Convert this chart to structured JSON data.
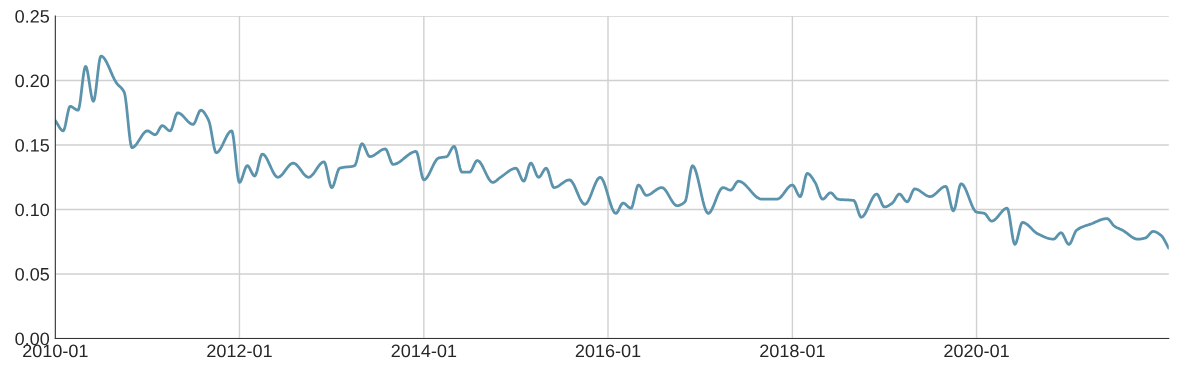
{
  "chart_data": {
    "type": "line",
    "x": [
      "2010-01",
      "2010-02",
      "2010-03",
      "2010-04",
      "2010-05",
      "2010-06",
      "2010-07",
      "2010-09",
      "2010-10",
      "2010-11",
      "2011-01",
      "2011-02",
      "2011-03",
      "2011-04",
      "2011-05",
      "2011-07",
      "2011-08",
      "2011-09",
      "2011-10",
      "2011-12",
      "2012-01",
      "2012-02",
      "2012-03",
      "2012-04",
      "2012-06",
      "2012-08",
      "2012-10",
      "2012-12",
      "2013-01",
      "2013-02",
      "2013-04",
      "2013-05",
      "2013-06",
      "2013-08",
      "2013-09",
      "2013-12",
      "2014-01",
      "2014-03",
      "2014-04",
      "2014-05",
      "2014-06",
      "2014-07",
      "2014-08",
      "2014-10",
      "2014-11",
      "2015-01",
      "2015-02",
      "2015-03",
      "2015-04",
      "2015-05",
      "2015-06",
      "2015-08",
      "2015-10",
      "2015-12",
      "2016-02",
      "2016-03",
      "2016-04",
      "2016-05",
      "2016-06",
      "2016-08",
      "2016-10",
      "2016-11",
      "2016-12",
      "2017-02",
      "2017-04",
      "2017-05",
      "2017-06",
      "2017-09",
      "2017-11",
      "2018-01",
      "2018-02",
      "2018-03",
      "2018-04",
      "2018-05",
      "2018-06",
      "2018-07",
      "2018-09",
      "2018-10",
      "2018-12",
      "2019-01",
      "2019-02",
      "2019-03",
      "2019-04",
      "2019-05",
      "2019-07",
      "2019-09",
      "2019-10",
      "2019-11",
      "2020-01",
      "2020-02",
      "2020-03",
      "2020-05",
      "2020-06",
      "2020-07",
      "2020-09",
      "2020-11",
      "2020-12",
      "2021-01",
      "2021-02",
      "2021-04",
      "2021-06",
      "2021-07",
      "2021-08",
      "2021-10",
      "2021-11",
      "2021-12",
      "2022-01",
      "2022-02"
    ],
    "series": [
      {
        "color": "#5b93ad",
        "values": [
          0.169,
          0.161,
          0.18,
          0.177,
          0.211,
          0.184,
          0.219,
          0.198,
          0.191,
          0.148,
          0.161,
          0.158,
          0.165,
          0.161,
          0.175,
          0.166,
          0.177,
          0.169,
          0.144,
          0.161,
          0.121,
          0.134,
          0.126,
          0.143,
          0.125,
          0.136,
          0.125,
          0.137,
          0.117,
          0.132,
          0.134,
          0.151,
          0.141,
          0.147,
          0.135,
          0.145,
          0.123,
          0.14,
          0.141,
          0.149,
          0.129,
          0.129,
          0.138,
          0.121,
          0.125,
          0.132,
          0.122,
          0.136,
          0.125,
          0.132,
          0.117,
          0.123,
          0.104,
          0.125,
          0.097,
          0.105,
          0.101,
          0.119,
          0.111,
          0.117,
          0.103,
          0.106,
          0.134,
          0.097,
          0.117,
          0.115,
          0.122,
          0.108,
          0.108,
          0.119,
          0.11,
          0.128,
          0.121,
          0.108,
          0.113,
          0.108,
          0.107,
          0.094,
          0.112,
          0.102,
          0.105,
          0.112,
          0.106,
          0.116,
          0.11,
          0.118,
          0.099,
          0.12,
          0.098,
          0.097,
          0.091,
          0.101,
          0.073,
          0.09,
          0.081,
          0.077,
          0.082,
          0.073,
          0.084,
          0.089,
          0.093,
          0.087,
          0.084,
          0.077,
          0.078,
          0.083,
          0.08,
          0.07
        ]
      }
    ],
    "xlim": [
      "2010-01",
      "2022-02"
    ],
    "xticks": [
      "2010-01",
      "2012-01",
      "2014-01",
      "2016-01",
      "2018-01",
      "2020-01"
    ],
    "ylim": [
      0,
      0.25
    ],
    "yticks": [
      {
        "value": 0,
        "label": "0.00"
      },
      {
        "value": 0.05,
        "label": "0.05"
      },
      {
        "value": 0.1,
        "label": "0.10"
      },
      {
        "value": 0.15,
        "label": "0.15"
      },
      {
        "value": 0.2,
        "label": "0.20"
      },
      {
        "value": 0.25,
        "label": "0.25"
      }
    ],
    "grid": true,
    "line_style": "solid"
  }
}
